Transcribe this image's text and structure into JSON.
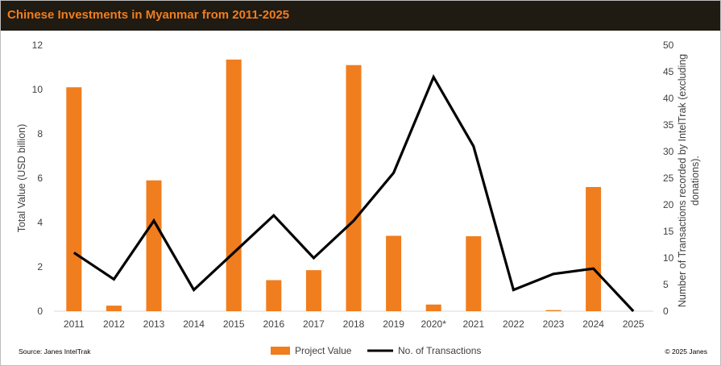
{
  "chart_data": {
    "type": "bar",
    "title": "Chinese Investments in Myanmar from 2011-2025",
    "categories": [
      "2011",
      "2012",
      "2013",
      "2014",
      "2015",
      "2016",
      "2017",
      "2018",
      "2019",
      "2020*",
      "2021",
      "2022",
      "2023",
      "2024",
      "2025"
    ],
    "series": [
      {
        "name": "Project Value",
        "type": "bar",
        "axis": "left",
        "color": "#f07d1e",
        "values": [
          10.1,
          0.25,
          5.9,
          0,
          11.35,
          1.4,
          1.85,
          11.1,
          3.4,
          0.3,
          3.38,
          0,
          0.05,
          5.6,
          0
        ]
      },
      {
        "name": "No. of Transactions",
        "type": "line",
        "axis": "right",
        "color": "#000000",
        "values": [
          11,
          6,
          17,
          4,
          11,
          18,
          10,
          17,
          26,
          44,
          31,
          4,
          7,
          8,
          0
        ]
      }
    ],
    "ylabel": "Total Value (USD billion)",
    "ylim": [
      0,
      12
    ],
    "yticks": [
      "0",
      "2",
      "4",
      "6",
      "8",
      "10",
      "12"
    ],
    "y2label": "Number of Transactions recorded by IntelTrak (excluding donations).",
    "y2lim": [
      0,
      50
    ],
    "y2ticks": [
      "0",
      "5",
      "10",
      "15",
      "20",
      "25",
      "30",
      "35",
      "40",
      "45",
      "50"
    ],
    "grid": false,
    "legend": "bottom-center"
  },
  "footer": {
    "source": "Source: Janes IntelTrak",
    "copyright": "© 2025 Janes"
  }
}
